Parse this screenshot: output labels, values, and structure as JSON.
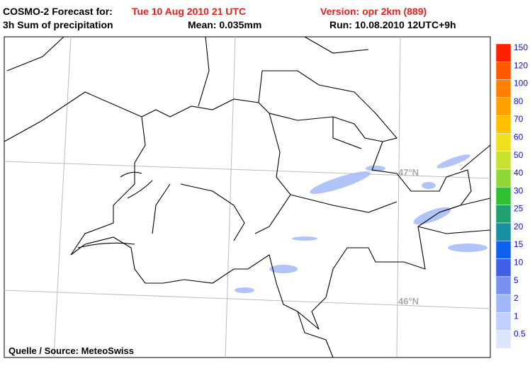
{
  "header": {
    "title_prefix": "COSMO-2 Forecast for:",
    "valid_time": "Tue 10 Aug 2010 21 UTC",
    "version": "Version: opr 2km (889)",
    "field": "3h Sum of precipitation",
    "mean": "Mean: 0.035mm",
    "run": "Run: 10.08.2010 12UTC+9h"
  },
  "map": {
    "lat_labels": [
      "47°N",
      "46°N"
    ],
    "source": "Quelle / Source: MeteoSwiss"
  },
  "legend": {
    "levels": [
      {
        "label": "150",
        "color": "#ff2000"
      },
      {
        "label": "120",
        "color": "#ff5a00"
      },
      {
        "label": "100",
        "color": "#ff8000"
      },
      {
        "label": "80",
        "color": "#ffa000"
      },
      {
        "label": "70",
        "color": "#ffc000"
      },
      {
        "label": "60",
        "color": "#f0e020"
      },
      {
        "label": "50",
        "color": "#c8e030"
      },
      {
        "label": "40",
        "color": "#90d838"
      },
      {
        "label": "30",
        "color": "#30c030"
      },
      {
        "label": "25",
        "color": "#20a070"
      },
      {
        "label": "20",
        "color": "#1890a0"
      },
      {
        "label": "15",
        "color": "#1060f0"
      },
      {
        "label": "10",
        "color": "#4060e8"
      },
      {
        "label": "5",
        "color": "#7890f0"
      },
      {
        "label": "2",
        "color": "#a0b8f8"
      },
      {
        "label": "1",
        "color": "#c0d0fc"
      },
      {
        "label": "0.5",
        "color": "#dce6ff"
      }
    ]
  }
}
